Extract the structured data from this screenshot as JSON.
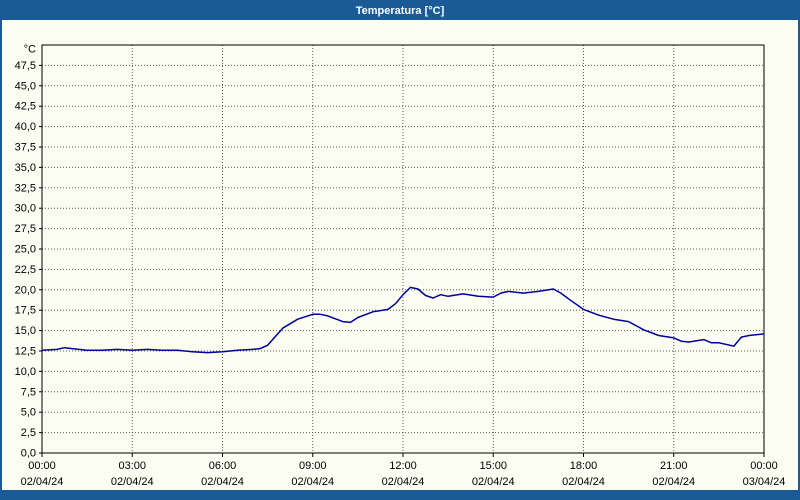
{
  "window": {
    "title": "Temperatura [°C]",
    "titlebar_color": "#1a5a96",
    "panel_background": "#fcfdf2"
  },
  "chart_data": {
    "type": "line",
    "title": "Temperatura [°C]",
    "unit_label": "°C",
    "line_color": "#000099",
    "grid_color": "#555555",
    "border_color": "#000000",
    "grid": true,
    "legend_position": "none",
    "ylim": [
      0,
      50
    ],
    "ytick_step": 2.5,
    "ytick_labels": [
      "0,0",
      "2,5",
      "5,0",
      "7,5",
      "10,0",
      "12,5",
      "15,0",
      "17,5",
      "20,0",
      "22,5",
      "25,0",
      "27,5",
      "30,0",
      "32,5",
      "35,0",
      "37,5",
      "40,0",
      "42,5",
      "45,0",
      "47,5"
    ],
    "xlim_hours": [
      0,
      24
    ],
    "xticks": [
      {
        "hour": 0,
        "time": "00:00",
        "date": "02/04/24"
      },
      {
        "hour": 3,
        "time": "03:00",
        "date": "02/04/24"
      },
      {
        "hour": 6,
        "time": "06:00",
        "date": "02/04/24"
      },
      {
        "hour": 9,
        "time": "09:00",
        "date": "02/04/24"
      },
      {
        "hour": 12,
        "time": "12:00",
        "date": "02/04/24"
      },
      {
        "hour": 15,
        "time": "15:00",
        "date": "02/04/24"
      },
      {
        "hour": 18,
        "time": "18:00",
        "date": "02/04/24"
      },
      {
        "hour": 21,
        "time": "21:00",
        "date": "02/04/24"
      },
      {
        "hour": 24,
        "time": "00:00",
        "date": "03/04/24"
      }
    ],
    "series": [
      {
        "name": "Temperatura",
        "x_hours": [
          0,
          0.5,
          0.75,
          1,
          1.5,
          2,
          2.5,
          3,
          3.5,
          4,
          4.5,
          5,
          5.5,
          6,
          6.5,
          7,
          7.25,
          7.5,
          8,
          8.5,
          9,
          9.25,
          9.5,
          10,
          10.25,
          10.5,
          11,
          11.5,
          11.75,
          12,
          12.25,
          12.5,
          12.75,
          13,
          13.25,
          13.5,
          14,
          14.5,
          15,
          15.25,
          15.5,
          16,
          16.5,
          17,
          17.25,
          17.5,
          18,
          18.5,
          19,
          19.5,
          20,
          20.5,
          21,
          21.25,
          21.5,
          22,
          22.25,
          22.5,
          23,
          23.25,
          23.5,
          24
        ],
        "values": [
          12.6,
          12.7,
          12.9,
          12.8,
          12.6,
          12.6,
          12.7,
          12.6,
          12.7,
          12.6,
          12.6,
          12.4,
          12.3,
          12.4,
          12.6,
          12.7,
          12.8,
          13.2,
          15.3,
          16.4,
          17.0,
          17.0,
          16.8,
          16.1,
          16.0,
          16.6,
          17.3,
          17.6,
          18.3,
          19.4,
          20.3,
          20.1,
          19.3,
          19.0,
          19.4,
          19.2,
          19.5,
          19.2,
          19.1,
          19.6,
          19.8,
          19.6,
          19.8,
          20.1,
          19.6,
          18.9,
          17.6,
          16.9,
          16.4,
          16.1,
          15.1,
          14.4,
          14.1,
          13.7,
          13.6,
          13.9,
          13.5,
          13.5,
          13.1,
          14.2,
          14.4,
          14.6
        ]
      }
    ]
  }
}
